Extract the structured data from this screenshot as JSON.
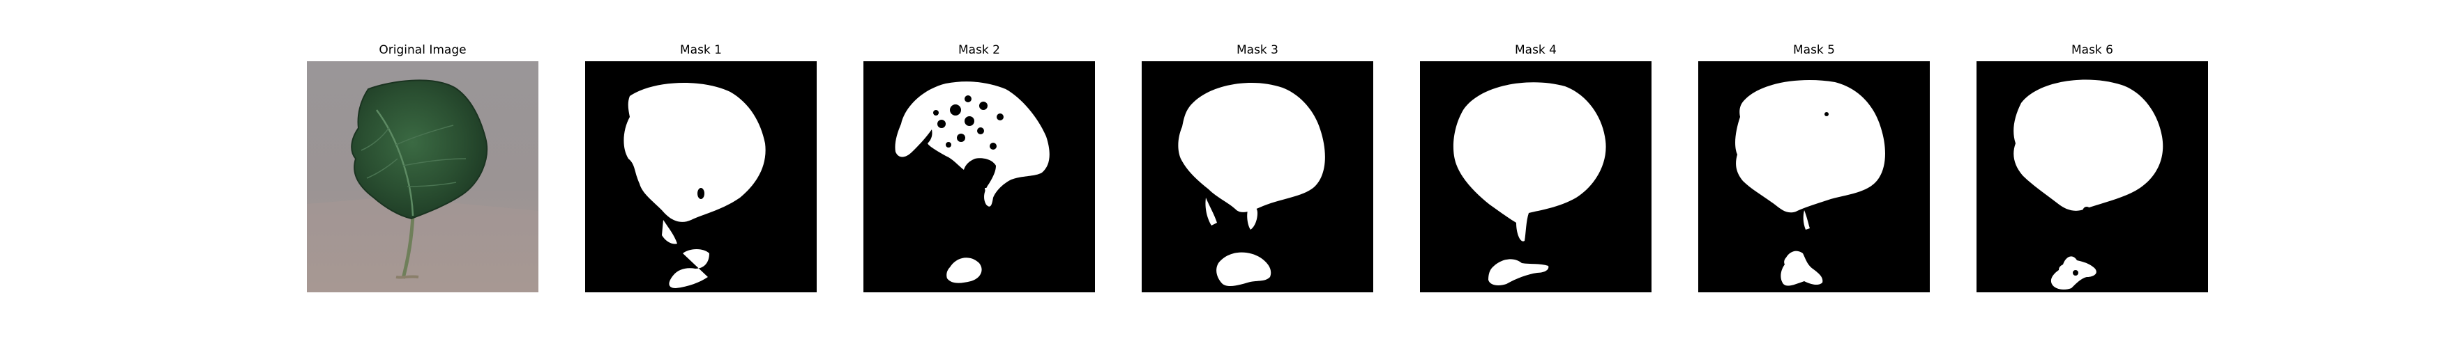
{
  "panels": [
    {
      "title": "Original Image"
    },
    {
      "title": "Mask 1"
    },
    {
      "title": "Mask 2"
    },
    {
      "title": "Mask 3"
    },
    {
      "title": "Mask 4"
    },
    {
      "title": "Mask 5"
    },
    {
      "title": "Mask 6"
    }
  ],
  "colors": {
    "mask_background": "#000000",
    "mask_foreground": "#ffffff",
    "leaf_dark": "#1f3f27",
    "leaf_mid": "#2f5a36",
    "background_sand": "#9a9595",
    "background_warm": "#a89a92"
  }
}
